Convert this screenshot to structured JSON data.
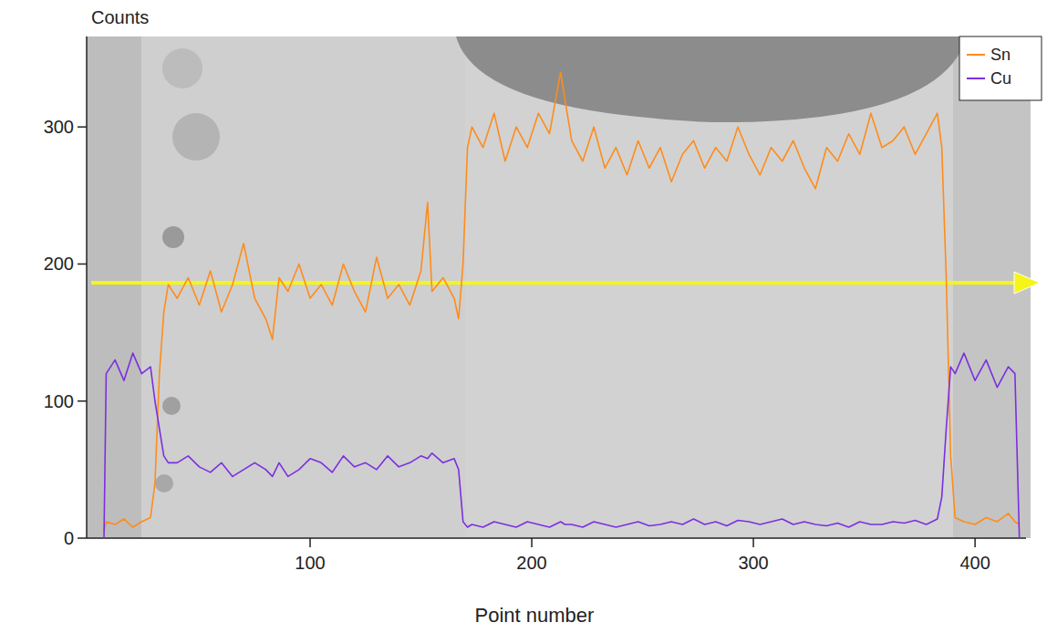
{
  "chart_data": {
    "type": "line",
    "y_label": "Counts",
    "x_label": "Point number",
    "x": [
      7,
      8,
      12,
      16,
      20,
      24,
      28,
      30,
      32,
      34,
      36,
      40,
      45,
      50,
      55,
      60,
      65,
      70,
      75,
      80,
      83,
      86,
      90,
      95,
      100,
      105,
      110,
      115,
      120,
      125,
      130,
      135,
      140,
      145,
      150,
      153,
      155,
      160,
      165,
      167,
      169,
      171,
      173,
      178,
      183,
      188,
      193,
      198,
      203,
      208,
      213,
      215,
      218,
      223,
      228,
      233,
      238,
      243,
      248,
      253,
      258,
      263,
      268,
      273,
      278,
      283,
      288,
      293,
      298,
      303,
      308,
      313,
      318,
      323,
      328,
      333,
      338,
      343,
      348,
      353,
      358,
      363,
      368,
      373,
      378,
      383,
      385,
      387,
      389,
      391,
      395,
      400,
      405,
      410,
      415,
      418,
      420
    ],
    "series": [
      {
        "name": "Sn",
        "color": "#ff8c1a",
        "values": [
          5,
          12,
          10,
          14,
          8,
          12,
          15,
          40,
          120,
          165,
          185,
          175,
          190,
          170,
          195,
          165,
          185,
          215,
          175,
          160,
          145,
          190,
          180,
          200,
          175,
          185,
          170,
          200,
          180,
          165,
          205,
          175,
          185,
          170,
          195,
          245,
          180,
          190,
          175,
          160,
          200,
          285,
          300,
          285,
          310,
          275,
          300,
          285,
          310,
          295,
          340,
          320,
          290,
          275,
          300,
          270,
          285,
          265,
          290,
          270,
          285,
          260,
          280,
          290,
          270,
          285,
          275,
          300,
          280,
          265,
          285,
          275,
          290,
          270,
          255,
          285,
          275,
          295,
          280,
          310,
          285,
          290,
          300,
          280,
          295,
          310,
          285,
          190,
          60,
          15,
          12,
          10,
          15,
          12,
          18,
          12,
          10
        ]
      },
      {
        "name": "Cu",
        "color": "#7b2fe0",
        "values": [
          0,
          120,
          130,
          115,
          135,
          120,
          125,
          100,
          80,
          60,
          55,
          55,
          60,
          52,
          48,
          55,
          45,
          50,
          55,
          50,
          45,
          55,
          45,
          50,
          58,
          55,
          48,
          60,
          52,
          55,
          50,
          60,
          52,
          55,
          60,
          58,
          62,
          55,
          58,
          50,
          12,
          8,
          10,
          8,
          12,
          10,
          8,
          12,
          10,
          8,
          12,
          10,
          10,
          8,
          12,
          10,
          8,
          10,
          12,
          9,
          10,
          12,
          10,
          14,
          10,
          12,
          9,
          13,
          12,
          10,
          12,
          14,
          10,
          12,
          10,
          9,
          11,
          8,
          12,
          10,
          10,
          12,
          11,
          13,
          10,
          14,
          30,
          80,
          125,
          120,
          135,
          115,
          130,
          110,
          125,
          120,
          0
        ]
      }
    ],
    "xlim": [
      0,
      423
    ],
    "ylim": [
      0,
      366
    ],
    "xticks": [
      100,
      200,
      300,
      400
    ],
    "yticks": [
      0,
      100,
      200,
      300
    ],
    "legend": "top-right",
    "grid": false
  }
}
